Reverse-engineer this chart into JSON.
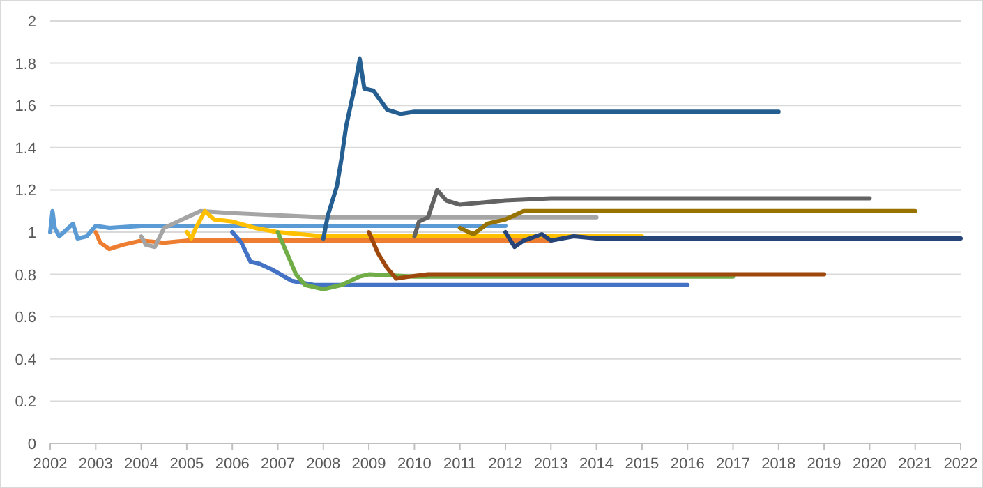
{
  "chart_data": {
    "type": "line",
    "xlim": [
      2002,
      2022
    ],
    "xticks": [
      2002,
      2003,
      2004,
      2005,
      2006,
      2007,
      2008,
      2009,
      2010,
      2011,
      2012,
      2013,
      2014,
      2015,
      2016,
      2017,
      2018,
      2019,
      2020,
      2021,
      2022
    ],
    "ylim": [
      0,
      2
    ],
    "yticks": [
      0,
      0.2,
      0.4,
      0.6,
      0.8,
      1,
      1.2,
      1.4,
      1.6,
      1.8,
      2
    ],
    "grid": "y",
    "line_style": "solid",
    "series": [
      {
        "color": "#5b9bd5",
        "x": [
          2002,
          2002.05,
          2002.1,
          2002.2,
          2002.3,
          2002.5,
          2002.6,
          2002.8,
          2003,
          2003.3,
          2004,
          2004.5,
          2005,
          2012
        ],
        "values": [
          1.0,
          1.1,
          1.02,
          0.98,
          1.0,
          1.04,
          0.97,
          0.98,
          1.03,
          1.02,
          1.03,
          1.03,
          1.03,
          1.03
        ]
      },
      {
        "color": "#ed7d31",
        "x": [
          2003,
          2003.1,
          2003.3,
          2003.6,
          2004,
          2004.5,
          2005,
          2006,
          2013
        ],
        "values": [
          1.0,
          0.95,
          0.92,
          0.94,
          0.96,
          0.95,
          0.96,
          0.96,
          0.96
        ]
      },
      {
        "color": "#a5a5a5",
        "x": [
          2004,
          2004.1,
          2004.3,
          2004.5,
          2004.8,
          2005,
          2005.3,
          2006,
          2007,
          2008,
          2014
        ],
        "values": [
          0.98,
          0.94,
          0.93,
          1.02,
          1.05,
          1.07,
          1.1,
          1.09,
          1.08,
          1.07,
          1.07
        ]
      },
      {
        "color": "#ffc000",
        "x": [
          2005,
          2005.1,
          2005.2,
          2005.4,
          2005.6,
          2006,
          2006.5,
          2007,
          2008,
          2015
        ],
        "values": [
          1.0,
          0.97,
          1.02,
          1.1,
          1.06,
          1.05,
          1.02,
          1.0,
          0.98,
          0.98
        ]
      },
      {
        "color": "#4472c4",
        "x": [
          2006,
          2006.2,
          2006.4,
          2006.6,
          2006.9,
          2007.3,
          2007.8,
          2009,
          2016
        ],
        "values": [
          1.0,
          0.95,
          0.86,
          0.85,
          0.82,
          0.77,
          0.75,
          0.75,
          0.75
        ]
      },
      {
        "color": "#70ad47",
        "x": [
          2007,
          2007.2,
          2007.4,
          2007.6,
          2008,
          2008.4,
          2008.8,
          2009,
          2010,
          2017
        ],
        "values": [
          1.0,
          0.9,
          0.8,
          0.75,
          0.73,
          0.75,
          0.79,
          0.8,
          0.79,
          0.79
        ]
      },
      {
        "color": "#255e91",
        "x": [
          2008,
          2008.1,
          2008.3,
          2008.4,
          2008.5,
          2008.7,
          2008.8,
          2008.9,
          2009.1,
          2009.4,
          2009.7,
          2010,
          2011,
          2018
        ],
        "values": [
          0.97,
          1.08,
          1.22,
          1.35,
          1.5,
          1.7,
          1.82,
          1.68,
          1.67,
          1.58,
          1.56,
          1.57,
          1.57,
          1.57
        ]
      },
      {
        "color": "#9e480e",
        "x": [
          2009,
          2009.2,
          2009.4,
          2009.6,
          2009.9,
          2010.3,
          2011,
          2019
        ],
        "values": [
          1.0,
          0.9,
          0.83,
          0.78,
          0.79,
          0.8,
          0.8,
          0.8
        ]
      },
      {
        "color": "#636363",
        "x": [
          2010,
          2010.1,
          2010.3,
          2010.5,
          2010.7,
          2011,
          2012,
          2013,
          2020
        ],
        "values": [
          0.98,
          1.05,
          1.07,
          1.2,
          1.15,
          1.13,
          1.15,
          1.16,
          1.16
        ]
      },
      {
        "color": "#997300",
        "x": [
          2011,
          2011.3,
          2011.6,
          2012,
          2012.4,
          2013,
          2021
        ],
        "values": [
          1.02,
          0.99,
          1.04,
          1.06,
          1.1,
          1.1,
          1.1
        ]
      },
      {
        "color": "#264478",
        "x": [
          2012,
          2012.2,
          2012.4,
          2012.8,
          2013,
          2013.5,
          2014,
          2022
        ],
        "values": [
          1.0,
          0.93,
          0.96,
          0.99,
          0.96,
          0.98,
          0.97,
          0.97
        ]
      }
    ]
  }
}
